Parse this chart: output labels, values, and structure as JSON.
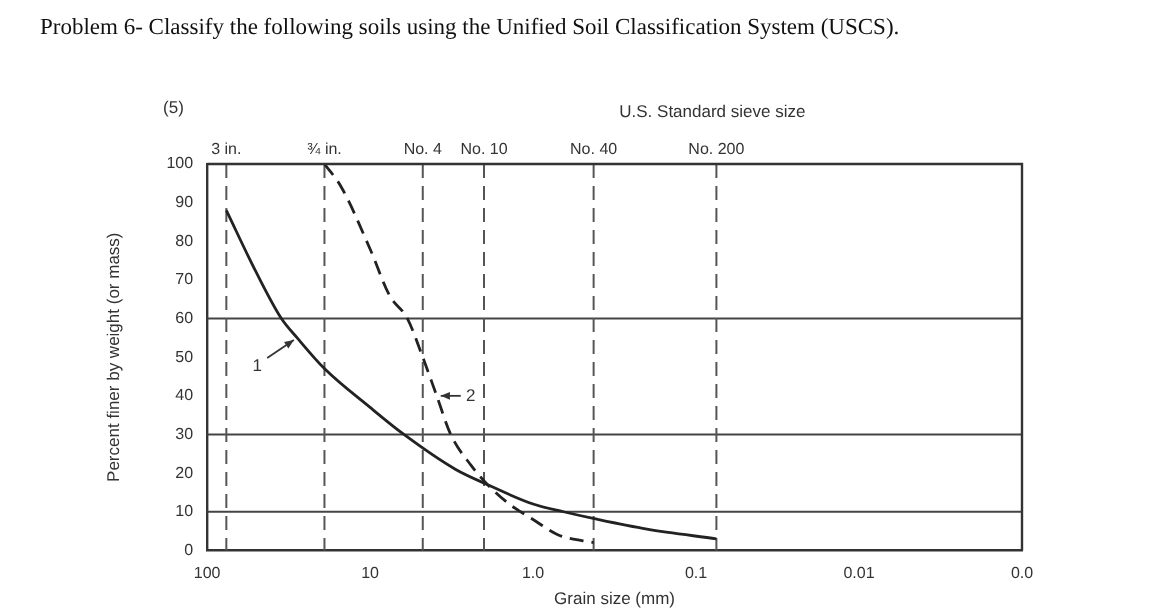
{
  "chart_data": {
    "type": "line",
    "title": "Problem 6- Classify the following soils using the Unified Soil Classification System (USCS).",
    "xlabel": "Grain size (mm)",
    "ylabel": "Percent finer by weight (or mass)",
    "log": "x",
    "xlim": [
      100,
      0.001
    ],
    "xticks": [
      {
        "value": 100,
        "label": "100"
      },
      {
        "value": 10,
        "label": "10"
      },
      {
        "value": 1,
        "label": "1.0"
      },
      {
        "value": 0.1,
        "label": "0.1"
      },
      {
        "value": 0.01,
        "label": "0.01"
      },
      {
        "value": 0.001,
        "label": "0.0"
      }
    ],
    "ylim": [
      0,
      100
    ],
    "yticks": [
      0,
      10,
      20,
      30,
      40,
      50,
      60,
      70,
      80,
      90,
      100
    ],
    "grid": false,
    "legend": false,
    "marker": "none",
    "series": [
      {
        "color": "#222222",
        "line_style": "solid",
        "x": [
          76.2,
          50,
          35,
          28,
          19,
          10,
          6.2,
          3,
          1.9,
          1,
          0.65,
          0.4,
          0.2,
          0.075
        ],
        "values": [
          88,
          72,
          60,
          55,
          47,
          37,
          30,
          21,
          17,
          12,
          10,
          8,
          5.5,
          3
        ]
      },
      {
        "color": "#222222",
        "line_style": "dashed",
        "x": [
          19.05,
          15,
          10,
          7.6,
          5.9,
          4.75,
          3.9,
          3.2,
          2.4,
          1.9,
          1.4,
          1,
          0.7,
          0.425
        ],
        "values": [
          100,
          94,
          78,
          66,
          60,
          50,
          40,
          30,
          22,
          17,
          12,
          8,
          4,
          2
        ]
      }
    ],
    "ref_lines": [
      {
        "axis": "y",
        "value": 10,
        "color": "#444444",
        "line_style": "solid"
      },
      {
        "axis": "y",
        "value": 30,
        "color": "#444444",
        "line_style": "solid"
      },
      {
        "axis": "y",
        "value": 60,
        "color": "#444444",
        "line_style": "solid"
      },
      {
        "axis": "x",
        "value": 76.2,
        "label": "3 in.",
        "color": "#555555",
        "line_style": "dashed"
      },
      {
        "axis": "x",
        "value": 19.05,
        "label": "¾ in.",
        "color": "#555555",
        "line_style": "dashed"
      },
      {
        "axis": "x",
        "value": 4.75,
        "label": "No. 4",
        "color": "#555555",
        "line_style": "dashed"
      },
      {
        "axis": "x",
        "value": 2,
        "label": "No. 10",
        "color": "#555555",
        "line_style": "dashed"
      },
      {
        "axis": "x",
        "value": 0.425,
        "label": "No. 40",
        "color": "#555555",
        "line_style": "dashed"
      },
      {
        "axis": "x",
        "value": 0.075,
        "label": "No. 200",
        "color": "#555555",
        "line_style": "dashed"
      }
    ],
    "annotations": [
      "(5)",
      "U.S. Standard sieve size",
      {
        "text": "1",
        "x": 28,
        "y": 55
      },
      {
        "text": "2",
        "x": 3.9,
        "y": 40
      }
    ]
  }
}
